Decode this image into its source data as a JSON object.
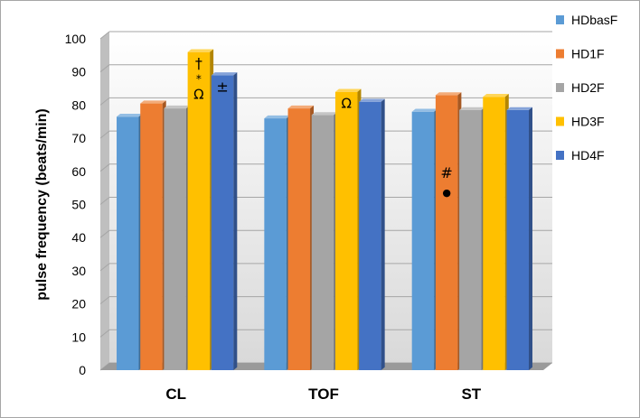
{
  "chart_data": {
    "type": "bar",
    "ylabel": "pulse frequency (beats/min)",
    "ylim": [
      0,
      100
    ],
    "yticks": [
      0,
      10,
      20,
      30,
      40,
      50,
      60,
      70,
      80,
      90,
      100
    ],
    "grid": true,
    "legend": "right",
    "categories": [
      "CL",
      "TOF",
      "ST"
    ],
    "series": [
      {
        "name": "HDbasF",
        "color": "#5B9BD5",
        "values": [
          76.5,
          76,
          78
        ]
      },
      {
        "name": "HD1F",
        "color": "#ED7D31",
        "values": [
          80.5,
          79,
          83
        ]
      },
      {
        "name": "HD2F",
        "color": "#A5A5A5",
        "values": [
          79,
          77,
          78.5
        ]
      },
      {
        "name": "HD3F",
        "color": "#FFC000",
        "values": [
          96,
          84,
          82.5
        ]
      },
      {
        "name": "HD4F",
        "color": "#4472C4",
        "values": [
          89,
          81,
          78.5
        ]
      }
    ],
    "annotations": [
      {
        "category": "CL",
        "series": "HD3F",
        "lines": [
          "†",
          "*",
          "Ω"
        ]
      },
      {
        "category": "CL",
        "series": "HD4F",
        "lines": [
          "±"
        ]
      },
      {
        "category": "TOF",
        "series": "HD3F",
        "lines": [
          "Ω"
        ]
      },
      {
        "category": "ST",
        "series": "HD1F",
        "lines": [
          "#",
          "●"
        ]
      }
    ]
  }
}
